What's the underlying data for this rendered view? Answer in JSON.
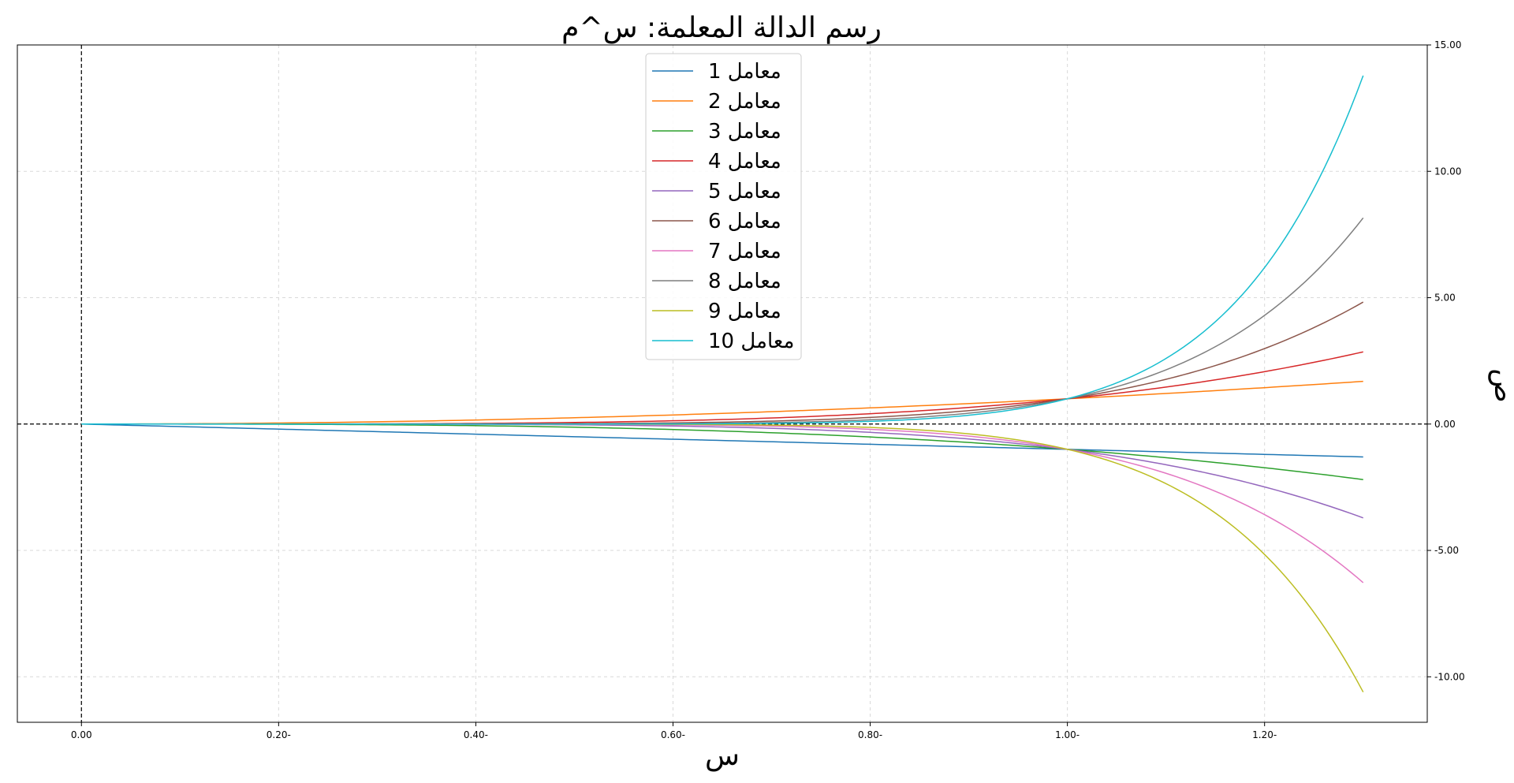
{
  "chart_data": {
    "type": "line",
    "title": "رسم الدالة المعلمة: س^م",
    "xlabel": "س",
    "ylabel": "ص",
    "xlim": [
      -0.065,
      1.365
    ],
    "ylim": [
      -11.8,
      15.0
    ],
    "grid": true,
    "legend_position": "top-center",
    "x_ticks": [
      {
        "value": 0.0,
        "label": "0.00"
      },
      {
        "value": 0.2,
        "label": "0.20-"
      },
      {
        "value": 0.4,
        "label": "0.40-"
      },
      {
        "value": 0.6,
        "label": "0.60-"
      },
      {
        "value": 0.8,
        "label": "0.80-"
      },
      {
        "value": 1.0,
        "label": "1.00-"
      },
      {
        "value": 1.2,
        "label": "1.20-"
      }
    ],
    "y_ticks": [
      {
        "value": 15,
        "label": "15.00"
      },
      {
        "value": 10,
        "label": "10.00"
      },
      {
        "value": 5,
        "label": "5.00"
      },
      {
        "value": 0,
        "label": "0.00"
      },
      {
        "value": -5,
        "label": "-5.00"
      },
      {
        "value": -10,
        "label": "-10.00"
      }
    ],
    "reference_lines": {
      "horizontal_y": 0,
      "vertical_x": 0
    },
    "function": "y = (-x)^m",
    "x": [
      0.0,
      0.1,
      0.2,
      0.3,
      0.4,
      0.5,
      0.6,
      0.7,
      0.8,
      0.9,
      1.0,
      1.1,
      1.2,
      1.3
    ],
    "series": [
      {
        "name": "معامل 1",
        "exponent": 1,
        "color": "#1f77b4",
        "values": [
          0,
          -0.1,
          -0.2,
          -0.3,
          -0.4,
          -0.5,
          -0.6,
          -0.7,
          -0.8,
          -0.9,
          -1,
          -1.1,
          -1.2,
          -1.3
        ]
      },
      {
        "name": "معامل 2",
        "exponent": 2,
        "color": "#ff7f0e",
        "values": [
          0,
          0.01,
          0.04,
          0.09,
          0.16,
          0.25,
          0.36,
          0.49,
          0.64,
          0.81,
          1,
          1.21,
          1.44,
          1.69
        ]
      },
      {
        "name": "معامل 3",
        "exponent": 3,
        "color": "#2ca02c",
        "values": [
          0,
          -0.001,
          -0.008,
          -0.027,
          -0.064,
          -0.125,
          -0.216,
          -0.343,
          -0.512,
          -0.729,
          -1,
          -1.331,
          -1.728,
          -2.197
        ]
      },
      {
        "name": "معامل 4",
        "exponent": 4,
        "color": "#d62728",
        "values": [
          0,
          0.0001,
          0.0016,
          0.0081,
          0.0256,
          0.0625,
          0.1296,
          0.2401,
          0.4096,
          0.6561,
          1,
          1.4641,
          2.0736,
          2.8561
        ]
      },
      {
        "name": "معامل 5",
        "exponent": 5,
        "color": "#9467bd",
        "values": [
          0,
          0,
          -0.0003,
          -0.0024,
          -0.0102,
          -0.0313,
          -0.0778,
          -0.1681,
          -0.3277,
          -0.5905,
          -1,
          -1.6105,
          -2.4883,
          -3.7129
        ]
      },
      {
        "name": "معامل 6",
        "exponent": 6,
        "color": "#8c564b",
        "values": [
          0,
          0,
          0.0001,
          0.0007,
          0.0041,
          0.0156,
          0.0467,
          0.1176,
          0.2621,
          0.5314,
          1,
          1.7716,
          2.986,
          4.8268
        ]
      },
      {
        "name": "معامل 7",
        "exponent": 7,
        "color": "#e377c2",
        "values": [
          0,
          0,
          0,
          -0.0002,
          -0.0016,
          -0.0078,
          -0.028,
          -0.0824,
          -0.2097,
          -0.4783,
          -1,
          -1.9487,
          -3.5832,
          -6.2749
        ]
      },
      {
        "name": "معامل 8",
        "exponent": 8,
        "color": "#7f7f7f",
        "values": [
          0,
          0,
          0,
          0.0001,
          0.0007,
          0.0039,
          0.0168,
          0.0576,
          0.1678,
          0.4305,
          1,
          2.1436,
          4.2998,
          8.1573
        ]
      },
      {
        "name": "معامل 9",
        "exponent": 9,
        "color": "#bcbd22",
        "values": [
          0,
          0,
          0,
          0,
          -0.0003,
          -0.002,
          -0.0101,
          -0.0404,
          -0.1342,
          -0.3874,
          -1,
          -2.3579,
          -5.1598,
          -10.6045
        ]
      },
      {
        "name": "معامل 10",
        "exponent": 10,
        "color": "#17becf",
        "values": [
          0,
          0,
          0,
          0,
          0.0001,
          0.001,
          0.006,
          0.0282,
          0.1074,
          0.3487,
          1,
          2.5937,
          6.1917,
          13.7858
        ]
      }
    ]
  }
}
